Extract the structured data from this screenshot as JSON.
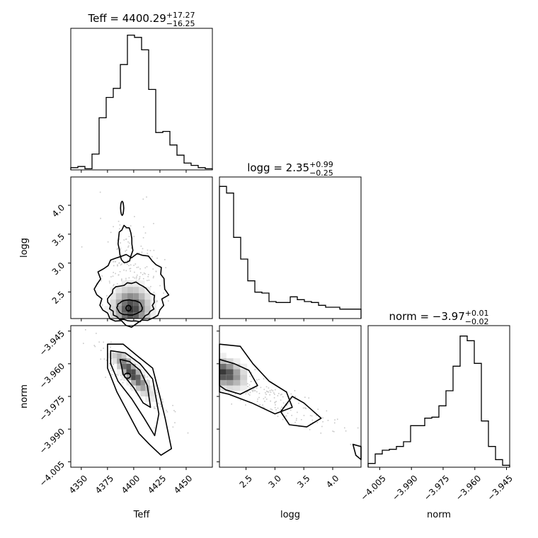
{
  "figure": {
    "type": "corner plot"
  },
  "chart_data": [
    {
      "type": "histogram",
      "parameter": "Teff",
      "title": {
        "name": "Teff",
        "value": "4400.29",
        "upper": "+17.27",
        "lower": "−16.25"
      },
      "xlim": [
        4340,
        4475
      ],
      "bin_edges": [
        4340,
        4346.75,
        4353.5,
        4360.25,
        4367,
        4373.75,
        4380.5,
        4387.25,
        4394,
        4400.75,
        4407.5,
        4414.25,
        4421,
        4427.75,
        4434.5,
        4441.25,
        4448,
        4454.75,
        4461.5,
        4468.25,
        4475
      ],
      "counts": [
        2,
        3,
        1,
        14,
        46,
        64,
        72,
        93,
        119,
        117,
        106,
        71,
        33,
        34,
        22,
        13,
        6,
        4,
        2,
        1
      ],
      "ylim": [
        0,
        125
      ],
      "xtick_values": [
        4350,
        4375,
        4400,
        4425,
        4450
      ]
    },
    {
      "type": "histogram",
      "parameter": "logg",
      "title": {
        "name": "logg",
        "value": "2.35",
        "upper": "+0.99",
        "lower": "−0.25"
      },
      "xlim": [
        2.04,
        4.49
      ],
      "bin_edges": [
        2.04,
        2.1625,
        2.285,
        2.4075,
        2.53,
        2.6525,
        2.775,
        2.8975,
        3.02,
        3.1425,
        3.265,
        3.3875,
        3.51,
        3.6325,
        3.755,
        3.8775,
        4.0,
        4.1225,
        4.245,
        4.3675,
        4.49
      ],
      "counts": [
        140,
        133,
        86,
        63,
        40,
        28,
        27,
        18,
        17,
        17,
        23,
        20,
        18,
        17,
        14,
        12,
        12,
        10,
        10,
        10
      ],
      "ylim": [
        0,
        150
      ],
      "xtick_values": [
        2.5,
        3.0,
        3.5,
        4.0
      ]
    },
    {
      "type": "histogram",
      "parameter": "norm",
      "title": {
        "name": "norm",
        "value": "−3.97",
        "upper": "+0.01",
        "lower": "−0.02"
      },
      "xlim": [
        -4.0105,
        -3.9435
      ],
      "bin_edges": [
        -4.0105,
        -4.00715,
        -4.0038,
        -4.00045,
        -3.9971,
        -3.99375,
        -3.9904,
        -3.98705,
        -3.9837,
        -3.98035,
        -3.977,
        -3.97365,
        -3.9703,
        -3.96695,
        -3.9636,
        -3.96025,
        -3.9569,
        -3.95355,
        -3.9502,
        -3.94685,
        -3.9435
      ],
      "counts": [
        4,
        14,
        18,
        19,
        22,
        27,
        44,
        44,
        52,
        53,
        65,
        81,
        107,
        139,
        134,
        110,
        49,
        22,
        8,
        2
      ],
      "ylim": [
        0,
        150
      ],
      "xtick_values": [
        -4.005,
        -3.99,
        -3.975,
        -3.96,
        -3.945
      ]
    },
    {
      "type": "2d_density",
      "x_parameter": "Teff",
      "y_parameter": "logg",
      "xlim": [
        4340,
        4475
      ],
      "ylim": [
        2.04,
        4.49
      ],
      "peak": [
        4395,
        2.22
      ],
      "samples_visible": "scattered grey points with contour levels around the density peak"
    },
    {
      "type": "2d_density",
      "x_parameter": "Teff",
      "y_parameter": "norm",
      "xlim": [
        4340,
        4475
      ],
      "ylim": [
        -4.0075,
        -3.9425
      ],
      "peak": [
        4396,
        -3.9655
      ],
      "correlation": "negative"
    },
    {
      "type": "2d_density",
      "x_parameter": "logg",
      "y_parameter": "norm",
      "xlim": [
        2.04,
        4.49
      ],
      "ylim": [
        -4.0075,
        -3.9425
      ],
      "peak": [
        2.1,
        -3.9655
      ],
      "correlation": "negative"
    }
  ],
  "axes": {
    "teff": {
      "label": "Teff",
      "ticks": [
        "4350",
        "4375",
        "4400",
        "4425",
        "4450"
      ]
    },
    "logg_x": {
      "label": "logg",
      "ticks": [
        "2.5",
        "3.0",
        "3.5",
        "4.0"
      ]
    },
    "norm_x": {
      "label": "norm",
      "ticks": [
        "−4.005",
        "−3.990",
        "−3.975",
        "−3.960",
        "−3.945"
      ]
    },
    "logg_y": {
      "label": "logg",
      "ticks": [
        "2.5",
        "3.0",
        "3.5",
        "4.0"
      ]
    },
    "norm_y": {
      "label": "norm",
      "ticks": [
        "−3.945",
        "−3.960",
        "−3.975",
        "−3.990",
        "−4.005"
      ]
    }
  }
}
